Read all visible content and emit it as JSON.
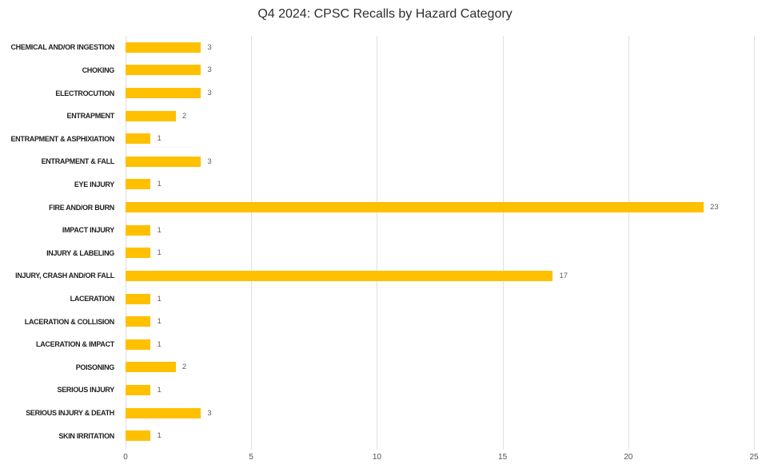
{
  "chart_data": {
    "type": "bar",
    "orientation": "horizontal",
    "title": "Q4 2024: CPSC Recalls by Hazard Category",
    "categories": [
      "CHEMICAL AND/OR INGESTION",
      "CHOKING",
      "ELECTROCUTION",
      "ENTRAPMENT",
      "ENTRAPMENT & ASPHIXIATION",
      "ENTRAPMENT & FALL",
      "EYE INJURY",
      "FIRE AND/OR BURN",
      "IMPACT INJURY",
      "INJURY & LABELING",
      "INJURY, CRASH AND/OR FALL",
      "LACERATION",
      "LACERATION & COLLISION",
      "LACERATION & IMPACT",
      "POISONING",
      "SERIOUS INJURY",
      "SERIOUS INJURY & DEATH",
      "SKIN IRRITATION"
    ],
    "values": [
      3,
      3,
      3,
      2,
      1,
      3,
      1,
      23,
      1,
      1,
      17,
      1,
      1,
      1,
      2,
      1,
      3,
      1
    ],
    "xlabel": "",
    "ylabel": "",
    "xlim": [
      0,
      25
    ],
    "xticks": [
      0,
      5,
      10,
      15,
      20,
      25
    ],
    "grid": "vertical",
    "legend": "none",
    "data_labels": true,
    "colors": {
      "bar": "#FFC000",
      "gridline": "#e9dcdc",
      "title_text": "#2e2e2e",
      "category_text": "#1f1f1f",
      "value_label_text": "#6a5752",
      "axis_tick_text": "#5a5150",
      "background": "#ffffff"
    }
  }
}
